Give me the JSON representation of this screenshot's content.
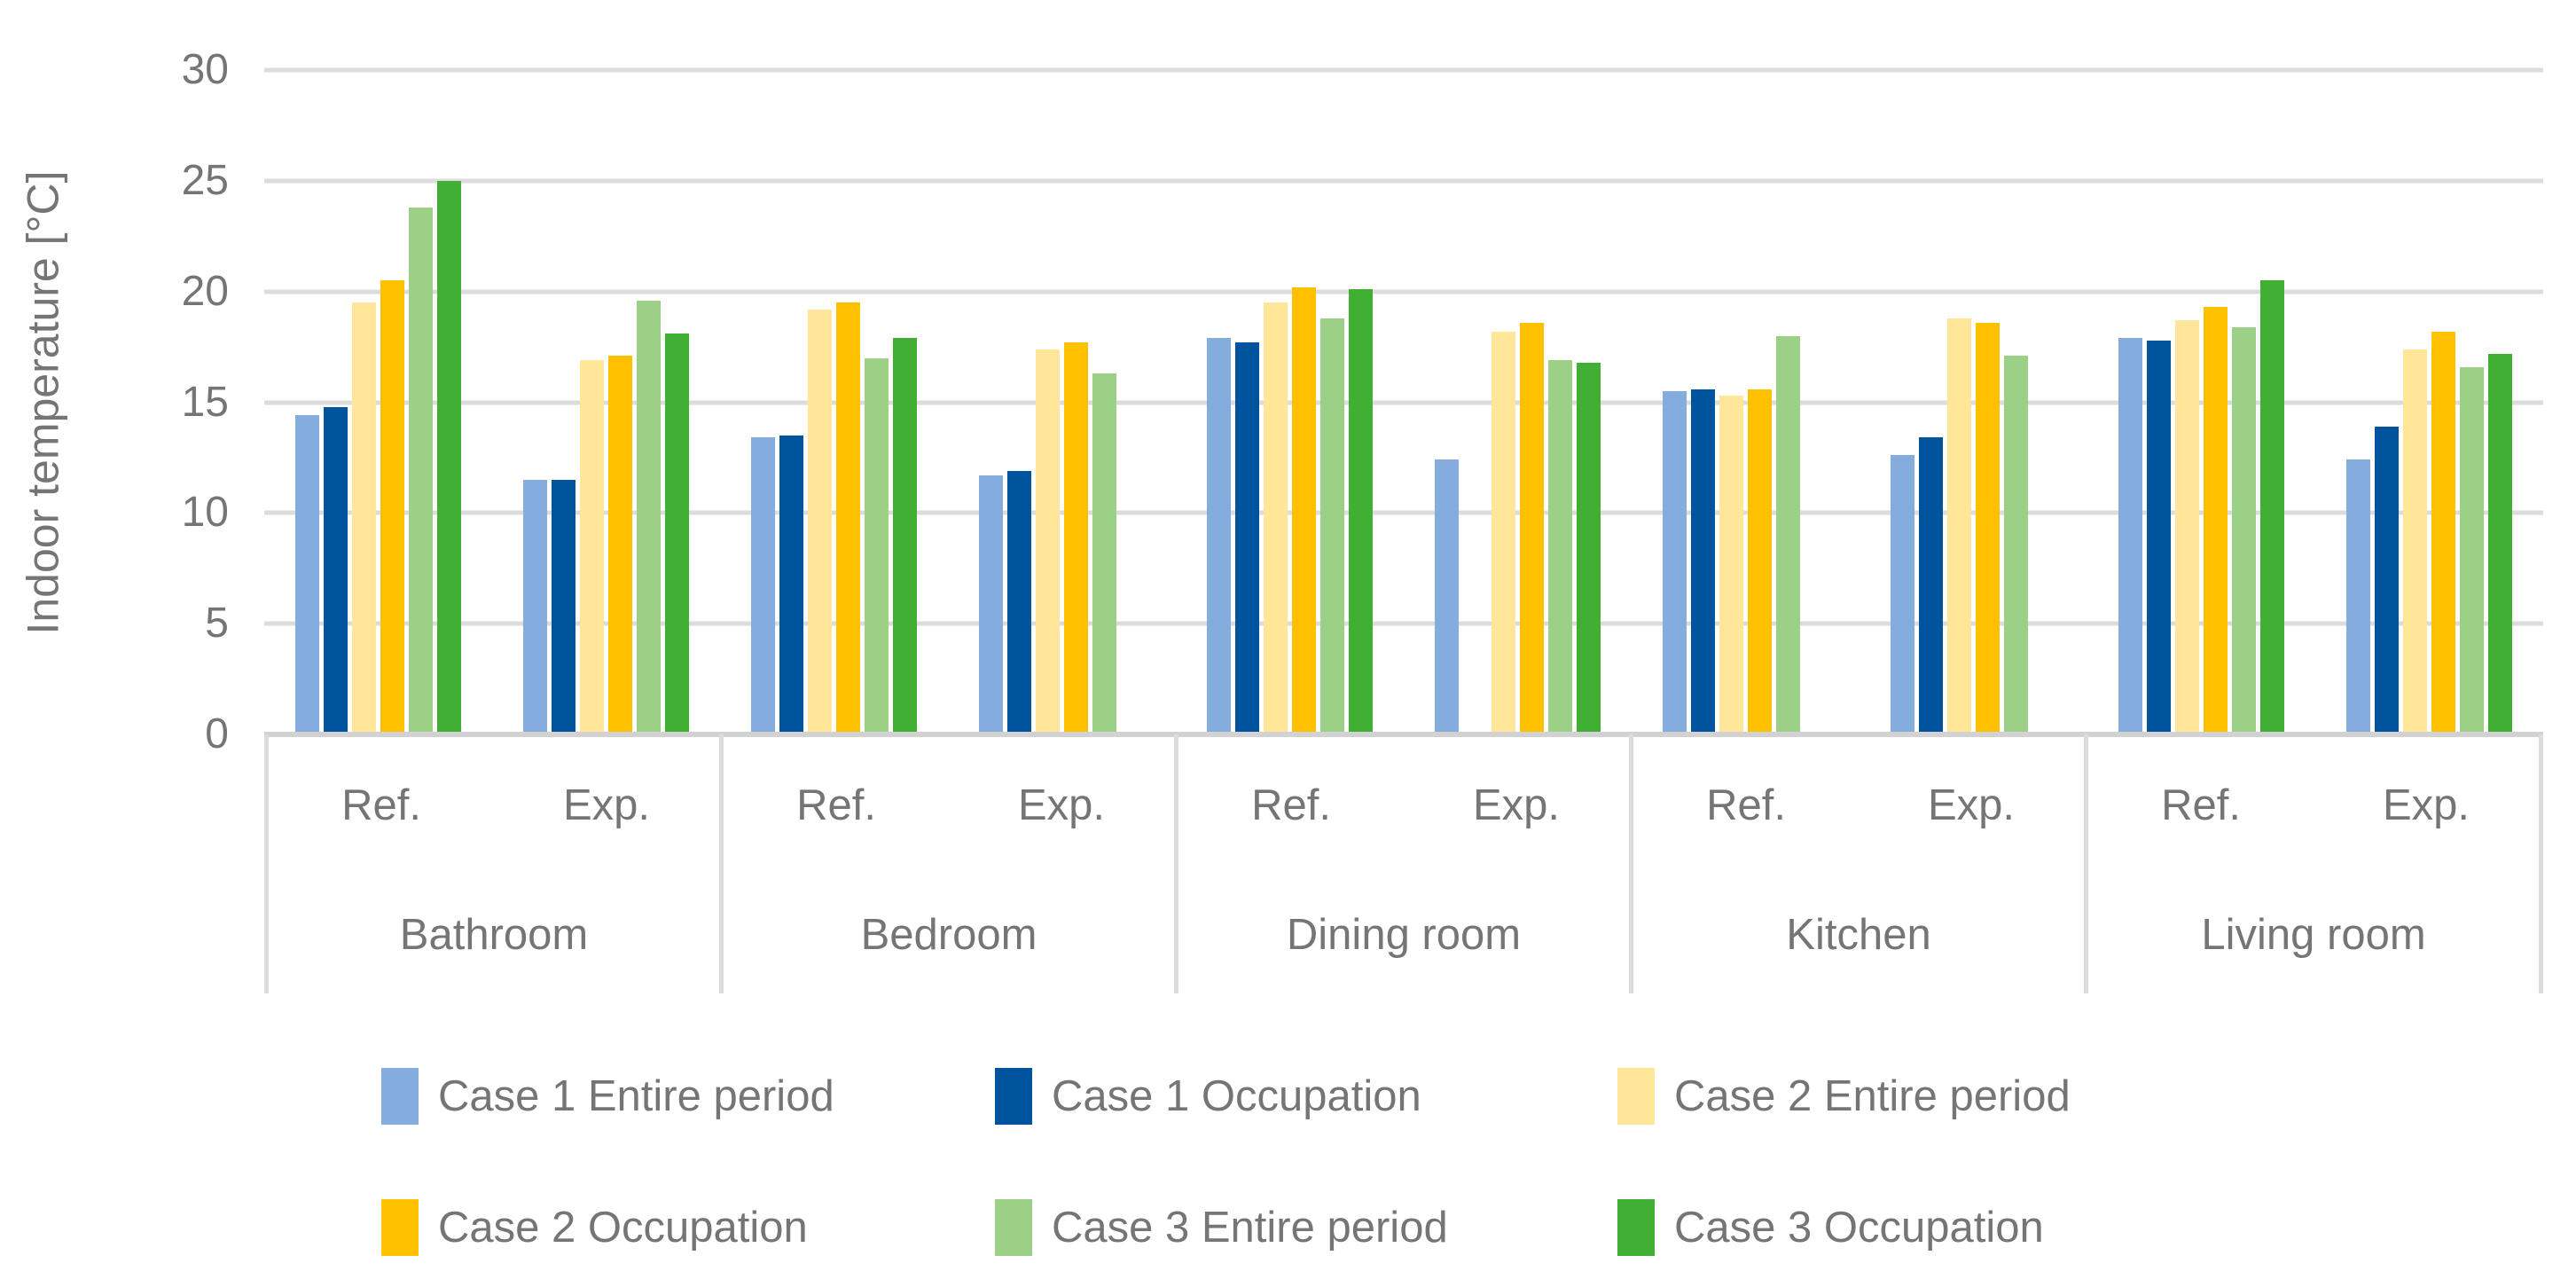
{
  "chart_data": {
    "type": "bar",
    "title": "",
    "ylabel": "Indoor temperature [°C]",
    "xlabel": "",
    "ylim": [
      0,
      30
    ],
    "yticks": [
      0,
      5,
      10,
      15,
      20,
      25,
      30
    ],
    "grid": true,
    "legend_position": "bottom",
    "series": [
      {
        "name": "Case 1 Entire period",
        "color": "#84ACDC"
      },
      {
        "name": "Case 1 Occupation",
        "color": "#00549E"
      },
      {
        "name": "Case 2 Entire period",
        "color": "#FFE699"
      },
      {
        "name": "Case 2 Occupation",
        "color": "#FFC000"
      },
      {
        "name": "Case 3 Entire period",
        "color": "#9CD086"
      },
      {
        "name": "Case 3 Occupation",
        "color": "#41AE34"
      }
    ],
    "rooms": [
      {
        "name": "Bathroom",
        "groups": [
          {
            "label": "Ref.",
            "values": [
              14.4,
              14.8,
              19.5,
              20.5,
              23.8,
              25.0
            ]
          },
          {
            "label": "Exp.",
            "values": [
              11.5,
              11.5,
              16.9,
              17.1,
              19.6,
              18.1
            ]
          }
        ]
      },
      {
        "name": "Bedroom",
        "groups": [
          {
            "label": "Ref.",
            "values": [
              13.4,
              13.5,
              19.2,
              19.5,
              17.0,
              17.9
            ]
          },
          {
            "label": "Exp.",
            "values": [
              11.7,
              11.9,
              17.4,
              17.7,
              16.3,
              null
            ]
          }
        ]
      },
      {
        "name": "Dining room",
        "groups": [
          {
            "label": "Ref.",
            "values": [
              17.9,
              17.7,
              19.5,
              20.2,
              18.8,
              20.1
            ]
          },
          {
            "label": "Exp.",
            "values": [
              12.4,
              null,
              18.2,
              18.6,
              16.9,
              16.8
            ]
          }
        ]
      },
      {
        "name": "Kitchen",
        "groups": [
          {
            "label": "Ref.",
            "values": [
              15.5,
              15.6,
              15.3,
              15.6,
              18.0,
              null
            ]
          },
          {
            "label": "Exp.",
            "values": [
              12.6,
              13.4,
              18.8,
              18.6,
              17.1,
              null
            ]
          }
        ]
      },
      {
        "name": "Living room",
        "groups": [
          {
            "label": "Ref.",
            "values": [
              17.9,
              17.8,
              18.7,
              19.3,
              18.4,
              20.5
            ]
          },
          {
            "label": "Exp.",
            "values": [
              12.4,
              13.9,
              17.4,
              18.2,
              16.6,
              17.2
            ]
          }
        ]
      }
    ],
    "legend_rows": [
      [
        0,
        1,
        2
      ],
      [
        3,
        4,
        5
      ]
    ]
  },
  "style": {
    "gridline_color": "#DCDCDC",
    "axis_line_color": "#D2D2D2",
    "text_color": "#757575"
  }
}
